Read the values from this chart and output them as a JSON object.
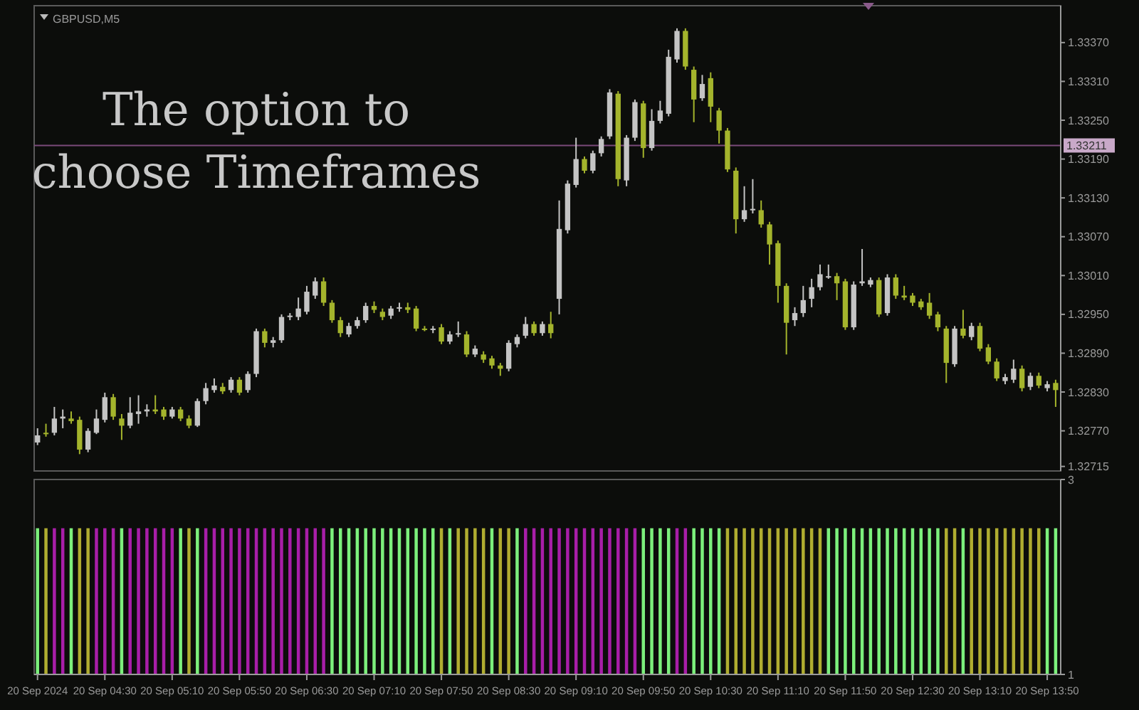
{
  "chart_data": [
    {
      "type": "candlestick",
      "title": "GBPUSD,M5",
      "annotations": [
        "The option to choose Timeframes"
      ],
      "x": [
        "2024-09-20T03:50",
        "2024-09-20T03:55",
        "2024-09-20T04:00",
        "2024-09-20T04:05",
        "2024-09-20T04:10",
        "2024-09-20T04:15",
        "2024-09-20T04:20",
        "2024-09-20T04:25",
        "2024-09-20T04:30",
        "2024-09-20T04:35",
        "2024-09-20T04:40",
        "2024-09-20T04:45",
        "2024-09-20T04:50",
        "2024-09-20T04:55",
        "2024-09-20T05:00",
        "2024-09-20T05:05",
        "2024-09-20T05:10",
        "2024-09-20T05:15",
        "2024-09-20T05:20",
        "2024-09-20T05:25",
        "2024-09-20T05:30",
        "2024-09-20T05:35",
        "2024-09-20T05:40",
        "2024-09-20T05:45",
        "2024-09-20T05:50",
        "2024-09-20T05:55",
        "2024-09-20T06:00",
        "2024-09-20T06:05",
        "2024-09-20T06:10",
        "2024-09-20T06:15",
        "2024-09-20T06:20",
        "2024-09-20T06:25",
        "2024-09-20T06:30",
        "2024-09-20T06:35",
        "2024-09-20T06:40",
        "2024-09-20T06:45",
        "2024-09-20T06:50",
        "2024-09-20T06:55",
        "2024-09-20T07:00",
        "2024-09-20T07:05",
        "2024-09-20T07:10",
        "2024-09-20T07:15",
        "2024-09-20T07:20",
        "2024-09-20T07:25",
        "2024-09-20T07:30",
        "2024-09-20T07:35",
        "2024-09-20T07:40",
        "2024-09-20T07:45",
        "2024-09-20T07:50",
        "2024-09-20T07:55",
        "2024-09-20T08:00",
        "2024-09-20T08:05",
        "2024-09-20T08:10",
        "2024-09-20T08:15",
        "2024-09-20T08:20",
        "2024-09-20T08:25",
        "2024-09-20T08:30",
        "2024-09-20T08:35",
        "2024-09-20T08:40",
        "2024-09-20T08:45",
        "2024-09-20T08:50",
        "2024-09-20T08:55",
        "2024-09-20T09:00",
        "2024-09-20T09:05",
        "2024-09-20T09:10",
        "2024-09-20T09:15",
        "2024-09-20T09:20",
        "2024-09-20T09:25",
        "2024-09-20T09:30",
        "2024-09-20T09:35",
        "2024-09-20T09:40",
        "2024-09-20T09:45",
        "2024-09-20T09:50",
        "2024-09-20T09:55",
        "2024-09-20T10:00",
        "2024-09-20T10:05",
        "2024-09-20T10:10",
        "2024-09-20T10:15",
        "2024-09-20T10:20",
        "2024-09-20T10:25",
        "2024-09-20T10:30",
        "2024-09-20T10:35",
        "2024-09-20T10:40",
        "2024-09-20T10:45",
        "2024-09-20T10:50",
        "2024-09-20T10:55",
        "2024-09-20T11:00",
        "2024-09-20T11:05",
        "2024-09-20T11:10",
        "2024-09-20T11:15",
        "2024-09-20T11:20",
        "2024-09-20T11:25",
        "2024-09-20T11:30",
        "2024-09-20T11:35",
        "2024-09-20T11:40",
        "2024-09-20T11:45",
        "2024-09-20T11:50",
        "2024-09-20T11:55",
        "2024-09-20T12:00",
        "2024-09-20T12:05",
        "2024-09-20T12:10",
        "2024-09-20T12:15",
        "2024-09-20T12:20",
        "2024-09-20T12:25",
        "2024-09-20T12:30",
        "2024-09-20T12:35",
        "2024-09-20T12:40",
        "2024-09-20T12:45",
        "2024-09-20T12:50",
        "2024-09-20T12:55",
        "2024-09-20T13:00",
        "2024-09-20T13:05",
        "2024-09-20T13:10",
        "2024-09-20T13:15",
        "2024-09-20T13:20",
        "2024-09-20T13:25",
        "2024-09-20T13:30",
        "2024-09-20T13:35",
        "2024-09-20T13:40",
        "2024-09-20T13:45",
        "2024-09-20T13:50",
        "2024-09-20T13:55"
      ],
      "ohlc": [
        [
          1.32752,
          1.32774,
          1.32748,
          1.32763
        ],
        [
          1.32767,
          1.32781,
          1.32761,
          1.32765
        ],
        [
          1.32767,
          1.32807,
          1.32763,
          1.32789
        ],
        [
          1.32789,
          1.32803,
          1.32774,
          1.32792
        ],
        [
          1.32789,
          1.328,
          1.32781,
          1.32785
        ],
        [
          1.32787,
          1.32792,
          1.32734,
          1.32741
        ],
        [
          1.32741,
          1.32774,
          1.32737,
          1.3277
        ],
        [
          1.32767,
          1.32803,
          1.32765,
          1.32789
        ],
        [
          1.32787,
          1.32829,
          1.32783,
          1.32822
        ],
        [
          1.32822,
          1.32827,
          1.32787,
          1.32792
        ],
        [
          1.32789,
          1.32796,
          1.32756,
          1.32778
        ],
        [
          1.32778,
          1.32822,
          1.32774,
          1.32798
        ],
        [
          1.32796,
          1.32825,
          1.32781,
          1.328
        ],
        [
          1.328,
          1.32811,
          1.32792,
          1.32803
        ],
        [
          1.32803,
          1.32825,
          1.32796,
          1.328
        ],
        [
          1.32803,
          1.32807,
          1.32787,
          1.32792
        ],
        [
          1.32792,
          1.32807,
          1.32789,
          1.32803
        ],
        [
          1.32803,
          1.32807,
          1.32785,
          1.32789
        ],
        [
          1.32789,
          1.32794,
          1.32774,
          1.32778
        ],
        [
          1.32778,
          1.3282,
          1.32776,
          1.32816
        ],
        [
          1.32816,
          1.32844,
          1.32811,
          1.32836
        ],
        [
          1.32833,
          1.32851,
          1.32829,
          1.3284
        ],
        [
          1.32838,
          1.32844,
          1.32827,
          1.32831
        ],
        [
          1.32833,
          1.32853,
          1.32829,
          1.32849
        ],
        [
          1.32849,
          1.32853,
          1.32825,
          1.32829
        ],
        [
          1.32833,
          1.32862,
          1.32829,
          1.32858
        ],
        [
          1.32858,
          1.32928,
          1.32853,
          1.32924
        ],
        [
          1.32924,
          1.32928,
          1.32899,
          1.32906
        ],
        [
          1.32906,
          1.32915,
          1.32899,
          1.3291
        ],
        [
          1.3291,
          1.3295,
          1.32906,
          1.32946
        ],
        [
          1.32946,
          1.32952,
          1.32941,
          1.32948
        ],
        [
          1.32946,
          1.32976,
          1.32941,
          1.32959
        ],
        [
          1.32954,
          1.32994,
          1.3295,
          1.32985
        ],
        [
          1.32979,
          1.33007,
          1.32974,
          1.33001
        ],
        [
          1.33001,
          1.33007,
          1.32963,
          1.32968
        ],
        [
          1.32968,
          1.32972,
          1.32937,
          1.32941
        ],
        [
          1.32941,
          1.32946,
          1.32915,
          1.32921
        ],
        [
          1.32919,
          1.32937,
          1.32915,
          1.32932
        ],
        [
          1.32932,
          1.32946,
          1.32928,
          1.32941
        ],
        [
          1.32941,
          1.32968,
          1.32937,
          1.32963
        ],
        [
          1.32963,
          1.3297,
          1.32952,
          1.32957
        ],
        [
          1.32954,
          1.32959,
          1.32941,
          1.32946
        ],
        [
          1.32948,
          1.32963,
          1.32943,
          1.32959
        ],
        [
          1.32959,
          1.32968,
          1.32954,
          1.32961
        ],
        [
          1.32961,
          1.32968,
          1.32952,
          1.32957
        ],
        [
          1.32959,
          1.32963,
          1.32924,
          1.32928
        ],
        [
          1.32928,
          1.32932,
          1.32924,
          1.32926
        ],
        [
          1.32926,
          1.32932,
          1.32921,
          1.32928
        ],
        [
          1.3293,
          1.32935,
          1.32904,
          1.32908
        ],
        [
          1.32908,
          1.32924,
          1.32904,
          1.32919
        ],
        [
          1.32919,
          1.32939,
          1.32915,
          1.32921
        ],
        [
          1.32919,
          1.32924,
          1.32884,
          1.32888
        ],
        [
          1.32888,
          1.32902,
          1.32884,
          1.32897
        ],
        [
          1.32888,
          1.32893,
          1.32875,
          1.3288
        ],
        [
          1.32882,
          1.32886,
          1.32866,
          1.32871
        ],
        [
          1.32871,
          1.32875,
          1.32855,
          1.32866
        ],
        [
          1.32866,
          1.3291,
          1.32862,
          1.32906
        ],
        [
          1.32904,
          1.32919,
          1.32899,
          1.32915
        ],
        [
          1.32917,
          1.32946,
          1.32913,
          1.32935
        ],
        [
          1.32935,
          1.32939,
          1.32917,
          1.32921
        ],
        [
          1.32921,
          1.32939,
          1.32917,
          1.32935
        ],
        [
          1.32935,
          1.32954,
          1.32913,
          1.32921
        ],
        [
          1.32974,
          1.33126,
          1.3295,
          1.33082
        ],
        [
          1.3308,
          1.33157,
          1.33075,
          1.33152
        ],
        [
          1.3315,
          1.33223,
          1.33146,
          1.3319
        ],
        [
          1.3319,
          1.33194,
          1.33168,
          1.33172
        ],
        [
          1.33172,
          1.33203,
          1.33168,
          1.33199
        ],
        [
          1.33199,
          1.33225,
          1.33194,
          1.33221
        ],
        [
          1.33225,
          1.33298,
          1.33221,
          1.33293
        ],
        [
          1.33291,
          1.33295,
          1.33148,
          1.33159
        ],
        [
          1.33157,
          1.33227,
          1.33148,
          1.33223
        ],
        [
          1.33223,
          1.33282,
          1.33218,
          1.33278
        ],
        [
          1.33276,
          1.3328,
          1.33192,
          1.33207
        ],
        [
          1.33207,
          1.33267,
          1.33203,
          1.33249
        ],
        [
          1.33249,
          1.3328,
          1.33245,
          1.33265
        ],
        [
          1.3326,
          1.33359,
          1.33256,
          1.33348
        ],
        [
          1.33344,
          1.33392,
          1.33339,
          1.33388
        ],
        [
          1.33388,
          1.33392,
          1.33328,
          1.33333
        ],
        [
          1.33328,
          1.33333,
          1.33247,
          1.33282
        ],
        [
          1.33284,
          1.3332,
          1.3328,
          1.33306
        ],
        [
          1.33315,
          1.33324,
          1.33247,
          1.33271
        ],
        [
          1.33265,
          1.33269,
          1.33214,
          1.33234
        ],
        [
          1.33234,
          1.33238,
          1.3317,
          1.33174
        ],
        [
          1.33172,
          1.33177,
          1.33075,
          1.33097
        ],
        [
          1.33097,
          1.33148,
          1.33093,
          1.33111
        ],
        [
          1.33111,
          1.33159,
          1.33106,
          1.33113
        ],
        [
          1.33111,
          1.33126,
          1.33084,
          1.33089
        ],
        [
          1.33089,
          1.33093,
          1.33027,
          1.33058
        ],
        [
          1.3306,
          1.33064,
          1.32968,
          1.32994
        ],
        [
          1.32994,
          1.32998,
          1.32888,
          1.32937
        ],
        [
          1.32941,
          1.32961,
          1.32932,
          1.32952
        ],
        [
          1.32952,
          1.32994,
          1.32946,
          1.32972
        ],
        [
          1.32974,
          1.33005,
          1.32961,
          1.32992
        ],
        [
          1.32992,
          1.33027,
          1.32987,
          1.33012
        ],
        [
          1.33007,
          1.33027,
          1.33005,
          1.33009
        ],
        [
          1.33009,
          1.33014,
          1.32972,
          1.32998
        ],
        [
          1.33001,
          1.33005,
          1.32926,
          1.3293
        ],
        [
          1.3293,
          1.33001,
          1.32926,
          1.32996
        ],
        [
          1.32998,
          1.33051,
          1.32994,
          1.33001
        ],
        [
          1.32996,
          1.33007,
          1.32992,
          1.33003
        ],
        [
          1.33003,
          1.33007,
          1.32946,
          1.3295
        ],
        [
          1.32952,
          1.33012,
          1.32948,
          1.33007
        ],
        [
          1.33007,
          1.33012,
          1.32974,
          1.32979
        ],
        [
          1.32979,
          1.32994,
          1.32972,
          1.32976
        ],
        [
          1.32979,
          1.32983,
          1.32963,
          1.32968
        ],
        [
          1.3297,
          1.32974,
          1.32957,
          1.32961
        ],
        [
          1.32968,
          1.32983,
          1.32943,
          1.32948
        ],
        [
          1.3295,
          1.32954,
          1.32924,
          1.3293
        ],
        [
          1.32928,
          1.32932,
          1.32844,
          1.32875
        ],
        [
          1.32873,
          1.32932,
          1.32869,
          1.32928
        ],
        [
          1.32928,
          1.32957,
          1.32913,
          1.32917
        ],
        [
          1.32915,
          1.32937,
          1.3291,
          1.32932
        ],
        [
          1.32932,
          1.32937,
          1.32893,
          1.32897
        ],
        [
          1.32899,
          1.32904,
          1.32873,
          1.32877
        ],
        [
          1.32877,
          1.32882,
          1.32847,
          1.32851
        ],
        [
          1.32847,
          1.32858,
          1.32842,
          1.32853
        ],
        [
          1.32849,
          1.3288,
          1.32844,
          1.32866
        ],
        [
          1.32866,
          1.32871,
          1.32831,
          1.32836
        ],
        [
          1.32838,
          1.3286,
          1.32833,
          1.32855
        ],
        [
          1.32855,
          1.3286,
          1.32836,
          1.3284
        ],
        [
          1.32836,
          1.32847,
          1.32831,
          1.32842
        ],
        [
          1.32844,
          1.32849,
          1.32807,
          1.32833
        ]
      ],
      "colors": [
        "#c4c4c4",
        "#a4b42c",
        "#c4c4c4",
        "#c4c4c4",
        "#a4b42c",
        "#a4b42c",
        "#c4c4c4",
        "#c4c4c4",
        "#c4c4c4",
        "#a4b42c",
        "#a4b42c",
        "#c4c4c4",
        "#c4c4c4",
        "#c4c4c4",
        "#a4b42c",
        "#a4b42c",
        "#c4c4c4",
        "#a4b42c",
        "#a4b42c",
        "#c4c4c4",
        "#c4c4c4",
        "#c4c4c4",
        "#a4b42c",
        "#c4c4c4",
        "#a4b42c",
        "#c4c4c4",
        "#c4c4c4",
        "#a4b42c",
        "#c4c4c4",
        "#c4c4c4",
        "#c4c4c4",
        "#c4c4c4",
        "#c4c4c4",
        "#c4c4c4",
        "#a4b42c",
        "#a4b42c",
        "#a4b42c",
        "#c4c4c4",
        "#c4c4c4",
        "#c4c4c4",
        "#a4b42c",
        "#a4b42c",
        "#c4c4c4",
        "#c4c4c4",
        "#a4b42c",
        "#a4b42c",
        "#a4b42c",
        "#c4c4c4",
        "#a4b42c",
        "#c4c4c4",
        "#c4c4c4",
        "#a4b42c",
        "#c4c4c4",
        "#a4b42c",
        "#a4b42c",
        "#a4b42c",
        "#c4c4c4",
        "#c4c4c4",
        "#c4c4c4",
        "#a4b42c",
        "#c4c4c4",
        "#a4b42c",
        "#c4c4c4",
        "#c4c4c4",
        "#c4c4c4",
        "#a4b42c",
        "#c4c4c4",
        "#c4c4c4",
        "#c4c4c4",
        "#a4b42c",
        "#c4c4c4",
        "#c4c4c4",
        "#a4b42c",
        "#c4c4c4",
        "#c4c4c4",
        "#c4c4c4",
        "#c4c4c4",
        "#a4b42c",
        "#a4b42c",
        "#c4c4c4",
        "#a4b42c",
        "#a4b42c",
        "#a4b42c",
        "#a4b42c",
        "#c4c4c4",
        "#c4c4c4",
        "#a4b42c",
        "#a4b42c",
        "#a4b42c",
        "#a4b42c",
        "#c4c4c4",
        "#c4c4c4",
        "#c4c4c4",
        "#c4c4c4",
        "#c4c4c4",
        "#a4b42c",
        "#a4b42c",
        "#c4c4c4",
        "#c4c4c4",
        "#c4c4c4",
        "#a4b42c",
        "#c4c4c4",
        "#a4b42c",
        "#a4b42c",
        "#a4b42c",
        "#a4b42c",
        "#a4b42c",
        "#a4b42c",
        "#a4b42c",
        "#c4c4c4",
        "#a4b42c",
        "#c4c4c4",
        "#a4b42c",
        "#a4b42c",
        "#a4b42c",
        "#c4c4c4",
        "#c4c4c4",
        "#a4b42c",
        "#c4c4c4",
        "#a4b42c",
        "#c4c4c4",
        "#a4b42c"
      ],
      "xlim": [
        "2024-09-20T03:48",
        "2024-09-20T13:58"
      ],
      "ylim": [
        1.32708,
        1.33427
      ],
      "yticks": [
        {
          "value": 1.3337,
          "label": "1.33370"
        },
        {
          "value": 1.3331,
          "label": "1.33310"
        },
        {
          "value": 1.3325,
          "label": "1.33250"
        },
        {
          "value": 1.3319,
          "label": "1.33190"
        },
        {
          "value": 1.3313,
          "label": "1.33130"
        },
        {
          "value": 1.3307,
          "label": "1.33070"
        },
        {
          "value": 1.3301,
          "label": "1.33010"
        },
        {
          "value": 1.3295,
          "label": "1.32950"
        },
        {
          "value": 1.3289,
          "label": "1.32890"
        },
        {
          "value": 1.3283,
          "label": "1.32830"
        },
        {
          "value": 1.3277,
          "label": "1.32770"
        },
        {
          "value": 1.32715,
          "label": "1.32715"
        }
      ],
      "ref_lines": [
        {
          "axis": "y",
          "value": 1.33211,
          "label": "1.33211",
          "color": "#7a4a7a"
        }
      ],
      "tick_labels": "y"
    },
    {
      "type": "bar",
      "x": [
        "2024-09-20T03:50",
        "2024-09-20T03:55",
        "2024-09-20T04:00",
        "2024-09-20T04:05",
        "2024-09-20T04:10",
        "2024-09-20T04:15",
        "2024-09-20T04:20",
        "2024-09-20T04:25",
        "2024-09-20T04:30",
        "2024-09-20T04:35",
        "2024-09-20T04:40",
        "2024-09-20T04:45",
        "2024-09-20T04:50",
        "2024-09-20T04:55",
        "2024-09-20T05:00",
        "2024-09-20T05:05",
        "2024-09-20T05:10",
        "2024-09-20T05:15",
        "2024-09-20T05:20",
        "2024-09-20T05:25",
        "2024-09-20T05:30",
        "2024-09-20T05:35",
        "2024-09-20T05:40",
        "2024-09-20T05:45",
        "2024-09-20T05:50",
        "2024-09-20T05:55",
        "2024-09-20T06:00",
        "2024-09-20T06:05",
        "2024-09-20T06:10",
        "2024-09-20T06:15",
        "2024-09-20T06:20",
        "2024-09-20T06:25",
        "2024-09-20T06:30",
        "2024-09-20T06:35",
        "2024-09-20T06:40",
        "2024-09-20T06:45",
        "2024-09-20T06:50",
        "2024-09-20T06:55",
        "2024-09-20T07:00",
        "2024-09-20T07:05",
        "2024-09-20T07:10",
        "2024-09-20T07:15",
        "2024-09-20T07:20",
        "2024-09-20T07:25",
        "2024-09-20T07:30",
        "2024-09-20T07:35",
        "2024-09-20T07:40",
        "2024-09-20T07:45",
        "2024-09-20T07:50",
        "2024-09-20T07:55",
        "2024-09-20T08:00",
        "2024-09-20T08:05",
        "2024-09-20T08:10",
        "2024-09-20T08:15",
        "2024-09-20T08:20",
        "2024-09-20T08:25",
        "2024-09-20T08:30",
        "2024-09-20T08:35",
        "2024-09-20T08:40",
        "2024-09-20T08:45",
        "2024-09-20T08:50",
        "2024-09-20T08:55",
        "2024-09-20T09:00",
        "2024-09-20T09:05",
        "2024-09-20T09:10",
        "2024-09-20T09:15",
        "2024-09-20T09:20",
        "2024-09-20T09:25",
        "2024-09-20T09:30",
        "2024-09-20T09:35",
        "2024-09-20T09:40",
        "2024-09-20T09:45",
        "2024-09-20T09:50",
        "2024-09-20T09:55",
        "2024-09-20T10:00",
        "2024-09-20T10:05",
        "2024-09-20T10:10",
        "2024-09-20T10:15",
        "2024-09-20T10:20",
        "2024-09-20T10:25",
        "2024-09-20T10:30",
        "2024-09-20T10:35",
        "2024-09-20T10:40",
        "2024-09-20T10:45",
        "2024-09-20T10:50",
        "2024-09-20T10:55",
        "2024-09-20T11:00",
        "2024-09-20T11:05",
        "2024-09-20T11:10",
        "2024-09-20T11:15",
        "2024-09-20T11:20",
        "2024-09-20T11:25",
        "2024-09-20T11:30",
        "2024-09-20T11:35",
        "2024-09-20T11:40",
        "2024-09-20T11:45",
        "2024-09-20T11:50",
        "2024-09-20T11:55",
        "2024-09-20T12:00",
        "2024-09-20T12:05",
        "2024-09-20T12:10",
        "2024-09-20T12:15",
        "2024-09-20T12:20",
        "2024-09-20T12:25",
        "2024-09-20T12:30",
        "2024-09-20T12:35",
        "2024-09-20T12:40",
        "2024-09-20T12:45",
        "2024-09-20T12:50",
        "2024-09-20T12:55",
        "2024-09-20T13:00",
        "2024-09-20T13:05",
        "2024-09-20T13:10",
        "2024-09-20T13:15",
        "2024-09-20T13:20",
        "2024-09-20T13:25",
        "2024-09-20T13:30",
        "2024-09-20T13:35",
        "2024-09-20T13:40",
        "2024-09-20T13:45",
        "2024-09-20T13:50",
        "2024-09-20T13:55"
      ],
      "values": [
        2.5,
        2.5,
        2.5,
        2.5,
        2.5,
        2.5,
        2.5,
        2.5,
        2.5,
        2.5,
        2.5,
        2.5,
        2.5,
        2.5,
        2.5,
        2.5,
        2.5,
        2.5,
        2.5,
        2.5,
        2.5,
        2.5,
        2.5,
        2.5,
        2.5,
        2.5,
        2.5,
        2.5,
        2.5,
        2.5,
        2.5,
        2.5,
        2.5,
        2.5,
        2.5,
        2.5,
        2.5,
        2.5,
        2.5,
        2.5,
        2.5,
        2.5,
        2.5,
        2.5,
        2.5,
        2.5,
        2.5,
        2.5,
        2.5,
        2.5,
        2.5,
        2.5,
        2.5,
        2.5,
        2.5,
        2.5,
        2.5,
        2.5,
        2.5,
        2.5,
        2.5,
        2.5,
        2.5,
        2.5,
        2.5,
        2.5,
        2.5,
        2.5,
        2.5,
        2.5,
        2.5,
        2.5,
        2.5,
        2.5,
        2.5,
        2.5,
        2.5,
        2.5,
        2.5,
        2.5,
        2.5,
        2.5,
        2.5,
        2.5,
        2.5,
        2.5,
        2.5,
        2.5,
        2.5,
        2.5,
        2.5,
        2.5,
        2.5,
        2.5,
        2.5,
        2.5,
        2.5,
        2.5,
        2.5,
        2.5,
        2.5,
        2.5,
        2.5,
        2.5,
        2.5,
        2.5,
        2.5,
        2.5,
        2.5,
        2.5,
        2.5,
        2.5,
        2.5,
        2.5,
        2.5,
        2.5,
        2.5,
        2.5,
        2.5,
        2.5,
        2.5,
        2.5
      ],
      "colors": [
        "#7cf07c",
        "#b0ad30",
        "#a81ea8",
        "#a81ea8",
        "#7cf07c",
        "#b0ad30",
        "#b0ad30",
        "#a81ea8",
        "#a81ea8",
        "#a81ea8",
        "#7cf07c",
        "#a81ea8",
        "#a81ea8",
        "#a81ea8",
        "#a81ea8",
        "#a81ea8",
        "#a81ea8",
        "#7cf07c",
        "#b0ad30",
        "#7cf07c",
        "#a81ea8",
        "#a81ea8",
        "#a81ea8",
        "#a81ea8",
        "#a81ea8",
        "#a81ea8",
        "#a81ea8",
        "#a81ea8",
        "#a81ea8",
        "#a81ea8",
        "#a81ea8",
        "#a81ea8",
        "#a81ea8",
        "#a81ea8",
        "#a81ea8",
        "#7cf07c",
        "#7cf07c",
        "#7cf07c",
        "#7cf07c",
        "#7cf07c",
        "#7cf07c",
        "#7cf07c",
        "#7cf07c",
        "#7cf07c",
        "#7cf07c",
        "#7cf07c",
        "#7cf07c",
        "#7cf07c",
        "#b0ad30",
        "#7cf07c",
        "#b0ad30",
        "#b0ad30",
        "#b0ad30",
        "#b0ad30",
        "#7cf07c",
        "#b0ad30",
        "#b0ad30",
        "#7cf07c",
        "#a81ea8",
        "#a81ea8",
        "#a81ea8",
        "#a81ea8",
        "#a81ea8",
        "#a81ea8",
        "#a81ea8",
        "#a81ea8",
        "#a81ea8",
        "#a81ea8",
        "#a81ea8",
        "#a81ea8",
        "#a81ea8",
        "#a81ea8",
        "#7cf07c",
        "#7cf07c",
        "#7cf07c",
        "#7cf07c",
        "#a81ea8",
        "#a81ea8",
        "#7cf07c",
        "#7cf07c",
        "#7cf07c",
        "#7cf07c",
        "#b0ad30",
        "#b0ad30",
        "#b0ad30",
        "#b0ad30",
        "#b0ad30",
        "#b0ad30",
        "#b0ad30",
        "#b0ad30",
        "#b0ad30",
        "#b0ad30",
        "#b0ad30",
        "#b0ad30",
        "#7cf07c",
        "#7cf07c",
        "#7cf07c",
        "#7cf07c",
        "#7cf07c",
        "#7cf07c",
        "#7cf07c",
        "#7cf07c",
        "#7cf07c",
        "#7cf07c",
        "#7cf07c",
        "#7cf07c",
        "#7cf07c",
        "#7cf07c",
        "#b0ad30",
        "#b0ad30",
        "#7cf07c",
        "#b0ad30",
        "#b0ad30",
        "#b0ad30",
        "#b0ad30",
        "#b0ad30",
        "#b0ad30",
        "#b0ad30",
        "#b0ad30",
        "#b0ad30",
        "#7cf07c",
        "#7cf07c"
      ],
      "xlim": [
        "2024-09-20T03:48",
        "2024-09-20T13:58"
      ],
      "xticks": [
        {
          "value": "2024-09-20T03:50",
          "label": "20 Sep 2024"
        },
        {
          "value": "2024-09-20T04:30",
          "label": "20 Sep 04:30"
        },
        {
          "value": "2024-09-20T05:10",
          "label": "20 Sep 05:10"
        },
        {
          "value": "2024-09-20T05:50",
          "label": "20 Sep 05:50"
        },
        {
          "value": "2024-09-20T06:30",
          "label": "20 Sep 06:30"
        },
        {
          "value": "2024-09-20T07:10",
          "label": "20 Sep 07:10"
        },
        {
          "value": "2024-09-20T07:50",
          "label": "20 Sep 07:50"
        },
        {
          "value": "2024-09-20T08:30",
          "label": "20 Sep 08:30"
        },
        {
          "value": "2024-09-20T09:10",
          "label": "20 Sep 09:10"
        },
        {
          "value": "2024-09-20T09:50",
          "label": "20 Sep 09:50"
        },
        {
          "value": "2024-09-20T10:30",
          "label": "20 Sep 10:30"
        },
        {
          "value": "2024-09-20T11:10",
          "label": "20 Sep 11:10"
        },
        {
          "value": "2024-09-20T11:50",
          "label": "20 Sep 11:50"
        },
        {
          "value": "2024-09-20T12:30",
          "label": "20 Sep 12:30"
        },
        {
          "value": "2024-09-20T13:10",
          "label": "20 Sep 13:10"
        },
        {
          "value": "2024-09-20T13:50",
          "label": "20 Sep 13:50"
        }
      ],
      "ylim": [
        1,
        3
      ],
      "yticks": [
        1,
        3
      ]
    }
  ]
}
